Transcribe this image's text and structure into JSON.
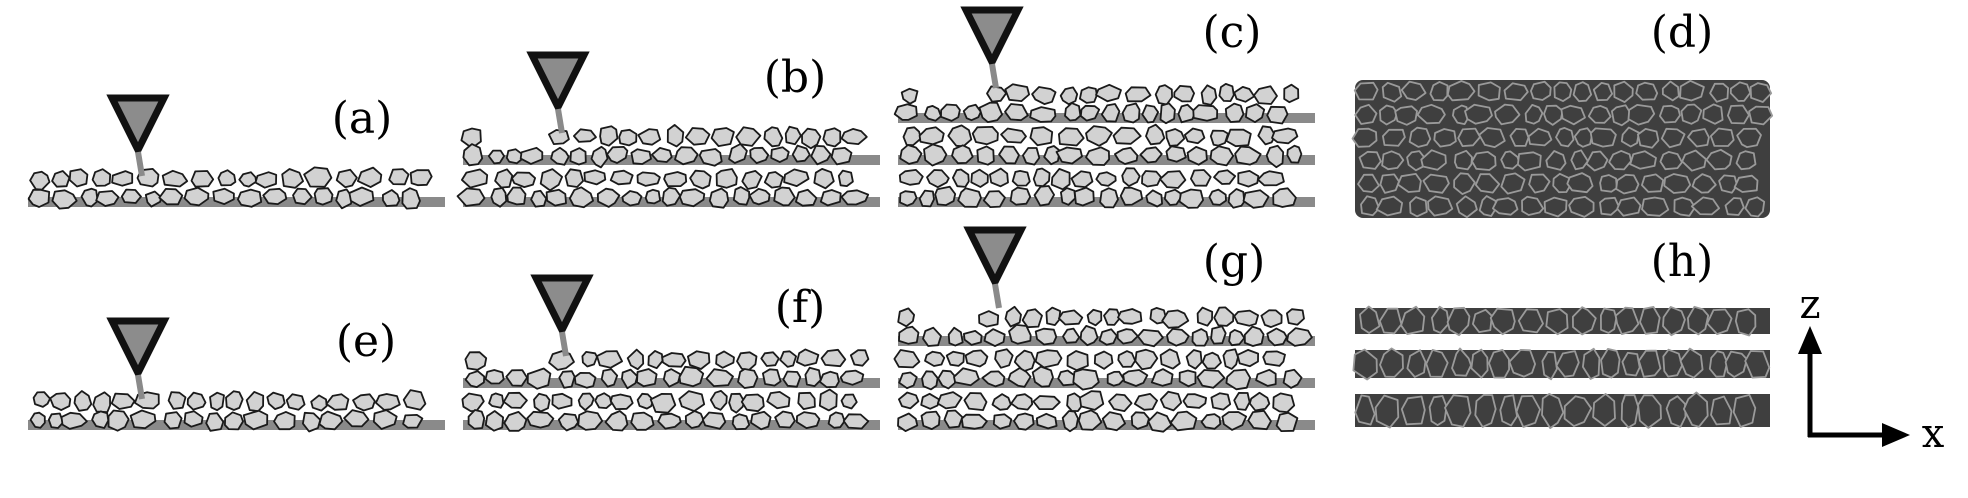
{
  "colors": {
    "grain_light": "#d2d2d2",
    "grain_dark": "#3f3f3f",
    "grain_outline_light": "#1a1a1a",
    "grain_outline_dark": "#9a9a9a",
    "binder": "#8a8a8a",
    "nozzle_fill": "#8c8c8c",
    "nozzle_stroke": "#111111",
    "axis": "#000000"
  },
  "panels": [
    {
      "id": "a",
      "label": "(a)",
      "layers": 1,
      "state": "printing",
      "row": "top"
    },
    {
      "id": "b",
      "label": "(b)",
      "layers": 2,
      "state": "printing",
      "row": "top"
    },
    {
      "id": "c",
      "label": "(c)",
      "layers": 3,
      "state": "printing",
      "row": "top"
    },
    {
      "id": "d",
      "label": "(d)",
      "layers": 3,
      "state": "sintered-continuous",
      "row": "top"
    },
    {
      "id": "e",
      "label": "(e)",
      "layers": 1,
      "state": "printing",
      "row": "bottom"
    },
    {
      "id": "f",
      "label": "(f)",
      "layers": 2,
      "state": "printing",
      "row": "bottom"
    },
    {
      "id": "g",
      "label": "(g)",
      "layers": 3,
      "state": "printing",
      "row": "bottom"
    },
    {
      "id": "h",
      "label": "(h)",
      "layers": 3,
      "state": "sintered-layered",
      "row": "bottom"
    }
  ],
  "axes": {
    "vertical": "z",
    "horizontal": "x"
  }
}
